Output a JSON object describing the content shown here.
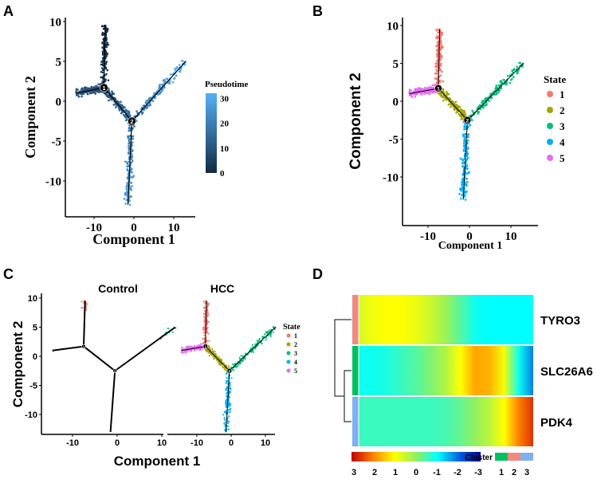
{
  "chart_data": [
    {
      "panel": "A",
      "type": "scatter",
      "xlabel": "Component 1",
      "ylabel": "Component 2",
      "xticks": [
        "-10",
        "0",
        "10"
      ],
      "yticks": [
        "10",
        "5",
        "0",
        "-5",
        "-10"
      ],
      "xtick_values": [
        -10,
        0,
        10
      ],
      "ytick_values": [
        10,
        5,
        0,
        -5,
        -10
      ],
      "legend": {
        "title": "Pseudotime",
        "ticks": [
          "30",
          "20",
          "10",
          "0"
        ],
        "tick_values": [
          30,
          20,
          10,
          0
        ],
        "range": [
          0,
          32
        ],
        "colors": [
          "#132B43",
          "#56B1F7"
        ]
      },
      "branch_nodes": [
        {
          "label": "1",
          "x": -7.5,
          "y": 1.7
        },
        {
          "label": "2",
          "x": -0.5,
          "y": -2.5
        }
      ],
      "branches": [
        {
          "state": 1,
          "from": [
            -7.5,
            1.7
          ],
          "to": [
            -7.2,
            9.5
          ],
          "pseudotime": [
            5,
            0
          ]
        },
        {
          "state": 5,
          "from": [
            -7.5,
            1.7
          ],
          "to": [
            -14.5,
            1.0
          ],
          "pseudotime": [
            8,
            12
          ]
        },
        {
          "state": 2,
          "from": [
            -7.5,
            1.7
          ],
          "to": [
            -0.5,
            -2.5
          ],
          "pseudotime": [
            8,
            16
          ]
        },
        {
          "state": 3,
          "from": [
            -0.5,
            -2.5
          ],
          "to": [
            13,
            5
          ],
          "pseudotime": [
            17,
            32
          ]
        },
        {
          "state": 4,
          "from": [
            -0.5,
            -2.5
          ],
          "to": [
            -1.5,
            -13
          ],
          "pseudotime": [
            18,
            28
          ]
        }
      ]
    },
    {
      "panel": "B",
      "type": "scatter",
      "xlabel": "Component 1",
      "ylabel": "Component 2",
      "xticks": [
        "-10",
        "0",
        "10"
      ],
      "yticks": [
        "10",
        "5",
        "0",
        "-5",
        "-10"
      ],
      "legend": {
        "title": "State",
        "entries": [
          "1",
          "2",
          "3",
          "4",
          "5"
        ]
      },
      "state_colors": {
        "1": "#F8766D",
        "2": "#A3A500",
        "3": "#00BF7D",
        "4": "#00B0F6",
        "5": "#E76BF3"
      }
    },
    {
      "panel": "C",
      "type": "scatter",
      "facets": [
        "Control",
        "HCC"
      ],
      "xlabel": "Component 1",
      "ylabel": "Component 2",
      "xticks": [
        "-10",
        "0",
        "10"
      ],
      "yticks": [
        "10",
        "5",
        "0",
        "-5",
        "-10"
      ],
      "legend": {
        "title": "State",
        "entries": [
          "1",
          "2",
          "3",
          "4",
          "5"
        ]
      }
    },
    {
      "panel": "D",
      "type": "heatmap",
      "rows": [
        "TYRO3",
        "SLC26A6",
        "PDK4"
      ],
      "row_clusters": [
        2,
        1,
        3
      ],
      "values": [
        [
          0.6,
          0.9,
          1.0,
          1.0,
          0.8,
          0.5,
          0.1,
          -0.4,
          -0.9,
          -1.0,
          -1.0,
          -1.0,
          -1.0
        ],
        [
          -0.9,
          -0.9,
          -0.8,
          -0.6,
          -0.4,
          -0.1,
          0.3,
          1.0,
          1.7,
          1.6,
          0.9,
          -0.9,
          -1.8
        ],
        [
          -0.6,
          -0.6,
          -0.6,
          -0.6,
          -0.6,
          -0.6,
          -0.5,
          -0.3,
          0,
          0.4,
          1.0,
          2.0,
          2.6
        ]
      ],
      "colorbar": {
        "ticks": [
          "3",
          "2",
          "1",
          "0",
          "-1",
          "-2",
          "-3"
        ],
        "tick_values": [
          3,
          2,
          1,
          0,
          -1,
          -2,
          -3
        ]
      },
      "cluster_legend": {
        "title": "Cluster",
        "entries": [
          "1",
          "2",
          "3"
        ],
        "colors": [
          "#00C060",
          "#F08A80",
          "#80B0F0"
        ]
      }
    }
  ],
  "panel_letters": [
    "A",
    "B",
    "C",
    "D"
  ]
}
